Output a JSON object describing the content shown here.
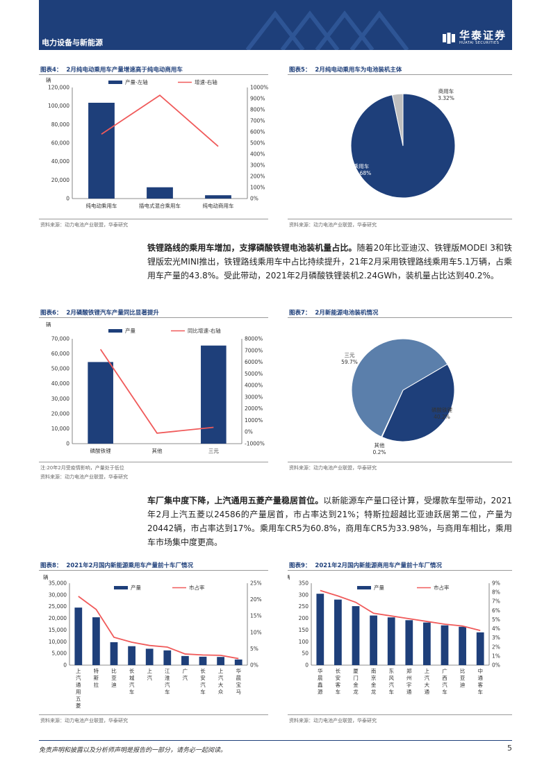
{
  "header": {
    "section": "电力设备与新能源",
    "logo_cn": "华泰证券",
    "logo_en": "HUATAI SECURITIES"
  },
  "fig4": {
    "label": "图表4：",
    "title": "2月纯电动乘用车产量增速高于纯电动商用车",
    "unit": "辆",
    "source": "资料来源：动力电池产业联盟，华泰研究",
    "chart_data": {
      "type": "bar",
      "categories": [
        "纯电动乘用车",
        "插电式混合乘用车",
        "纯电动商用车"
      ],
      "series": [
        {
          "name": "产量-左轴",
          "type": "bar",
          "values": [
            103500,
            12200,
            3600
          ]
        },
        {
          "name": "增速-右轴",
          "type": "line",
          "values": [
            580,
            930,
            470
          ]
        }
      ],
      "ylim_left": [
        0,
        120000
      ],
      "ylim_right": [
        0,
        1000
      ],
      "yticks_left": [
        "0",
        "20,000",
        "40,000",
        "60,000",
        "80,000",
        "100,000",
        "120,000"
      ],
      "yticks_right": [
        "0%",
        "100%",
        "200%",
        "300%",
        "400%",
        "500%",
        "600%",
        "700%",
        "800%",
        "900%",
        "1000%"
      ]
    }
  },
  "fig5": {
    "label": "图表5：",
    "title": "2月纯电动乘用车为电池装机主体",
    "source": "资料来源：动力电池产业联盟，华泰研究",
    "chart_data": {
      "type": "pie",
      "slices": [
        {
          "name": "乘用车",
          "pct_label": "96.68%",
          "value": 96.68,
          "color": "#1e3f7a"
        },
        {
          "name": "商用车",
          "pct_label": "3.32%",
          "value": 3.32,
          "color": "#bfbfbf"
        }
      ]
    }
  },
  "para1": {
    "bold": "铁锂路线的乘用车增加，支撑磷酸铁锂电池装机量占比。",
    "text": "随着20年比亚迪汉、铁锂版MODEl 3和铁锂版宏光MINI推出，铁锂路线乘用车中占比持续提升，21年2月采用铁锂路线乘用车5.1万辆，占乘用车产量的43.8%。受此带动，2021年2月磷酸铁锂装机2.24GWh，装机量占比达到40.2%。"
  },
  "fig6": {
    "label": "图表6：",
    "title": "2月磷酸铁锂汽车产量同比显著提升",
    "unit": "辆",
    "note": "注:20年2月受疫情影响，产量处于低位",
    "source": "资料来源：动力电池产业联盟，华泰研究",
    "chart_data": {
      "type": "bar",
      "categories": [
        "磷酸铁锂",
        "其他",
        "三元"
      ],
      "series": [
        {
          "name": "产量",
          "type": "bar",
          "values": [
            54500,
            0,
            65500
          ]
        },
        {
          "name": "同比增速-右轴",
          "type": "line",
          "values": [
            7100,
            -100,
            400
          ]
        }
      ],
      "ylim_left": [
        0,
        70000
      ],
      "ylim_right": [
        -1000,
        8000
      ],
      "yticks_left": [
        "0",
        "10,000",
        "20,000",
        "30,000",
        "40,000",
        "50,000",
        "60,000",
        "70,000"
      ],
      "yticks_right": [
        "-1000%",
        "0%",
        "1000%",
        "2000%",
        "3000%",
        "4000%",
        "5000%",
        "6000%",
        "7000%",
        "8000%"
      ]
    }
  },
  "fig7": {
    "label": "图表7：",
    "title": "2月新能源电池装机情况",
    "source": "资料来源：动力电池产业联盟，华泰研究",
    "chart_data": {
      "type": "pie",
      "slices": [
        {
          "name": "磷酸铁锂",
          "pct_label": "40.2%",
          "value": 40.2,
          "color": "#1e3f7a"
        },
        {
          "name": "其他",
          "pct_label": "0.2%",
          "value": 0.2,
          "color": "#bfbfbf"
        },
        {
          "name": "三元",
          "pct_label": "59.7%",
          "value": 59.7,
          "color": "#5b7fab"
        }
      ]
    }
  },
  "para2": {
    "bold": "车厂集中度下降，上汽通用五菱产量稳居首位。",
    "text": "以新能源车产量口径计算，受爆款车型带动，2021年2月上汽五菱以24586的产量居首，市占率达到21%；特斯拉超越比亚迪跃居第二位，产量为20442辆，市占率达到17%。乘用车CR5为60.8%，商用车CR5为33.98%，与商用车相比，乘用车市场集中度更高。"
  },
  "fig8": {
    "label": "图表8：",
    "title": "2021年2月国内新能源乘用车产量前十车厂情况",
    "unit": "辆",
    "source": "资料来源：动力电池产业联盟，华泰研究",
    "chart_data": {
      "type": "bar",
      "categories": [
        "上汽通用五菱",
        "特斯拉",
        "比亚迪",
        "长城汽车",
        "上汽",
        "江淮汽车",
        "广汽",
        "长安汽车",
        "上汽大众",
        "华晨宝马"
      ],
      "series": [
        {
          "name": "产量",
          "type": "bar",
          "values": [
            24586,
            20442,
            9800,
            8100,
            7000,
            6300,
            3900,
            3600,
            3500,
            2400
          ]
        },
        {
          "name": "市占率",
          "type": "line",
          "values": [
            21,
            17,
            8.5,
            7,
            6,
            5.5,
            3.4,
            3.1,
            3,
            2
          ]
        }
      ],
      "ylim_left": [
        0,
        35000
      ],
      "ylim_right": [
        0,
        25
      ],
      "yticks_left": [
        "0",
        "5,000",
        "10,000",
        "15,000",
        "20,000",
        "25,000",
        "30,000",
        "35,000"
      ],
      "yticks_right": [
        "0%",
        "5%",
        "10%",
        "15%",
        "20%",
        "25%"
      ]
    }
  },
  "fig9": {
    "label": "图表9：",
    "title": "2021年2月国内新能源商用车产量前十车厂情况",
    "unit": "辆",
    "source": "资料来源：动力电池产业联盟，华泰研究",
    "chart_data": {
      "type": "bar",
      "categories": [
        "华晨鑫源",
        "长安客车",
        "厦门金龙",
        "南京金龙",
        "东风汽车",
        "郑州宇通",
        "上汽大通",
        "广西汽车",
        "比亚迪",
        "中通客车"
      ],
      "series": [
        {
          "name": "产量",
          "type": "bar",
          "values": [
            305,
            280,
            252,
            212,
            204,
            192,
            182,
            170,
            164,
            140
          ]
        },
        {
          "name": "市占率",
          "type": "line",
          "values": [
            8.2,
            7.6,
            6.9,
            5.7,
            5.4,
            5.1,
            4.8,
            4.5,
            4.3,
            3.8
          ]
        }
      ],
      "ylim_left": [
        0,
        350
      ],
      "ylim_right": [
        0,
        9
      ],
      "yticks_left": [
        "0",
        "50",
        "100",
        "150",
        "200",
        "250",
        "300",
        "350"
      ],
      "yticks_right": [
        "0%",
        "1%",
        "2%",
        "3%",
        "4%",
        "5%",
        "6%",
        "7%",
        "8%",
        "9%"
      ]
    }
  },
  "footer": {
    "disclaimer": "免责声明和披露以及分析师声明是报告的一部分，请务必一起阅读。",
    "page": "5"
  },
  "colors": {
    "bar": "#1e3f7a",
    "line": "#f05a5a",
    "light": "#5b7fab",
    "grey": "#bfbfbf"
  }
}
